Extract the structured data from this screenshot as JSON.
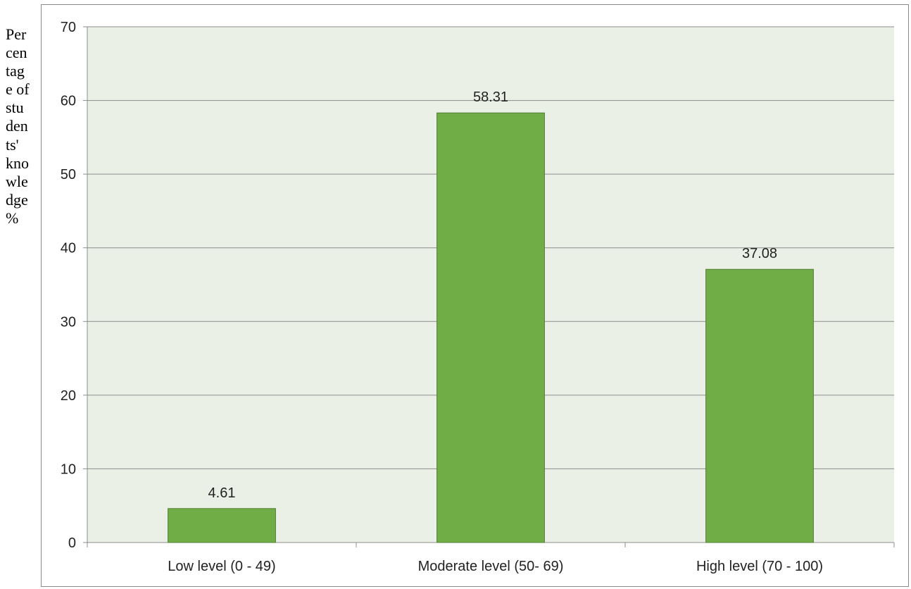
{
  "chart_data": {
    "type": "bar",
    "title": "",
    "xlabel": "",
    "ylabel": "Percentage of students' knowledge %",
    "categories": [
      "Low level (0 - 49)",
      "Moderate level (50- 69)",
      "High level (70 - 100)"
    ],
    "values": [
      4.61,
      58.31,
      37.08
    ],
    "data_labels": [
      "4.61",
      "58.31",
      "37.08"
    ],
    "ylim": [
      0,
      70
    ],
    "yticks": [
      "0",
      "10",
      "20",
      "30",
      "40",
      "50",
      "60",
      "70"
    ],
    "grid": true,
    "legend": "none",
    "colors": {
      "bar": "#70ad47",
      "bar_border": "#507e32",
      "plot_background": "#eaf0e6",
      "gridline": "#8c8c8c",
      "text": "#222222"
    }
  }
}
